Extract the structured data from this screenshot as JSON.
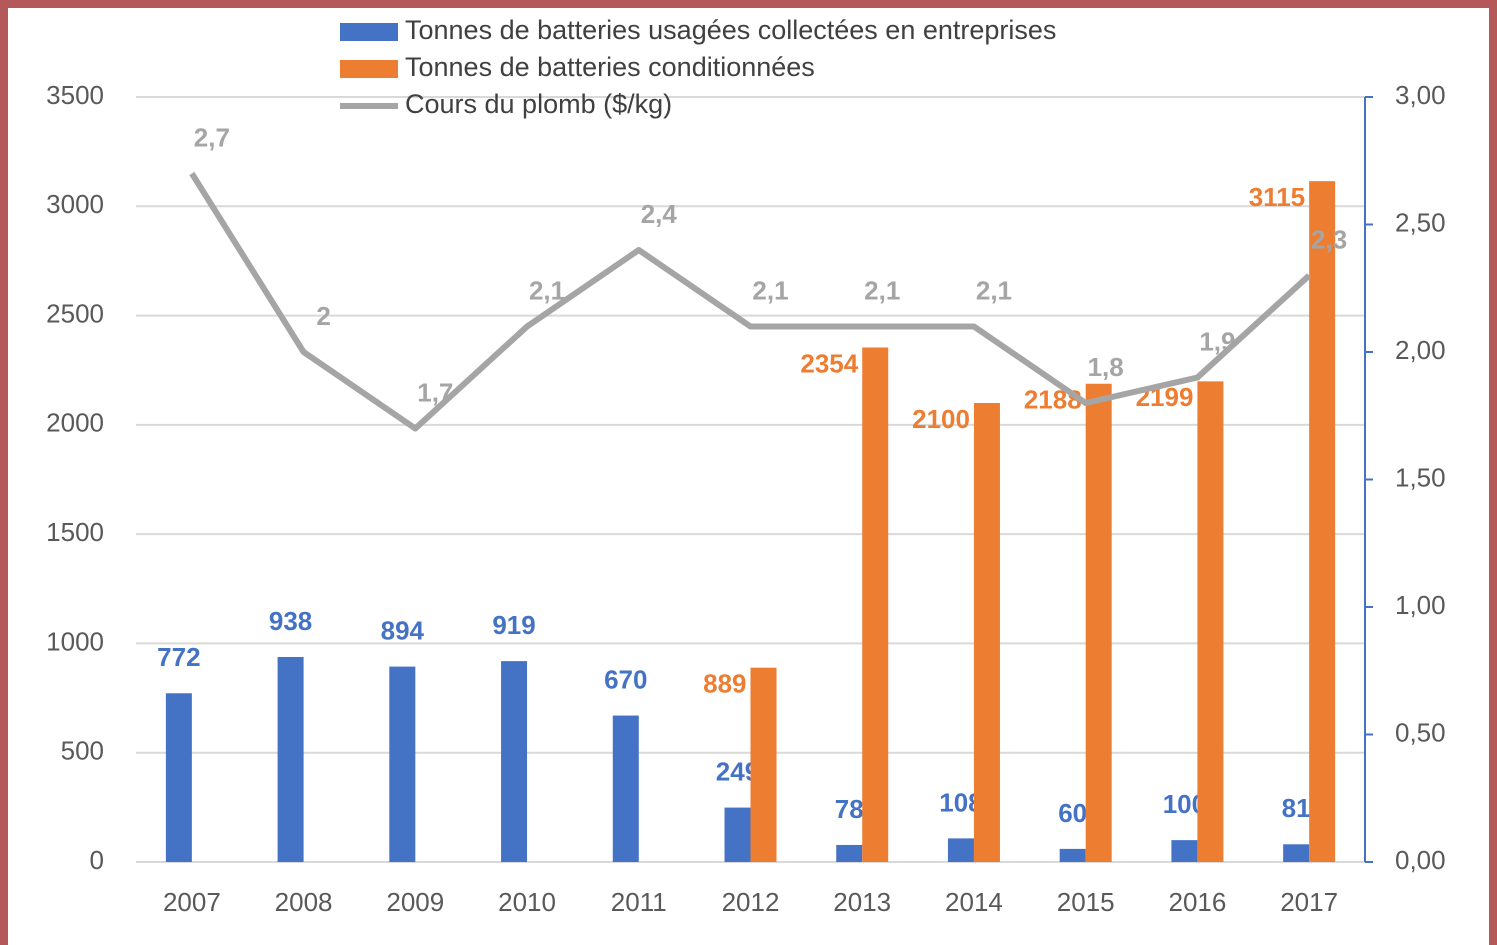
{
  "chart_data": {
    "type": "bar-line",
    "categories": [
      "2007",
      "2008",
      "2009",
      "2010",
      "2011",
      "2012",
      "2013",
      "2014",
      "2015",
      "2016",
      "2017"
    ],
    "series": [
      {
        "name": "Tonnes de batteries usagées collectées en entreprises",
        "type": "bar",
        "color": "#4472c4",
        "values": [
          772,
          938,
          894,
          919,
          670,
          249,
          78,
          108,
          60,
          100,
          81
        ]
      },
      {
        "name": "Tonnes de batteries conditionnées",
        "type": "bar",
        "color": "#ed7d31",
        "values": [
          null,
          null,
          null,
          null,
          null,
          889,
          2354,
          2100,
          2188,
          2199,
          3115
        ]
      },
      {
        "name": "Cours du plomb ($/kg)",
        "type": "line",
        "axis": "y2",
        "color": "#a5a5a5",
        "values": [
          2.7,
          2,
          1.7,
          2.1,
          2.4,
          2.1,
          2.1,
          2.1,
          1.8,
          1.9,
          2.3
        ],
        "value_labels": [
          "2,7",
          "2",
          "1,7",
          "2,1",
          "2,4",
          "2,1",
          "2,1",
          "2,1",
          "1,8",
          "1,9",
          "2,3"
        ]
      }
    ],
    "ylim": [
      0,
      3500
    ],
    "yticks": [
      0,
      500,
      1000,
      1500,
      2000,
      2500,
      3000,
      3500
    ],
    "y2lim": [
      0,
      3
    ],
    "y2ticks": [
      {
        "value": 0,
        "label": "0,00"
      },
      {
        "value": 0.5,
        "label": "0,50"
      },
      {
        "value": 1,
        "label": "1,00"
      },
      {
        "value": 1.5,
        "label": "1,50"
      },
      {
        "value": 2,
        "label": "2,00"
      },
      {
        "value": 2.5,
        "label": "2,50"
      },
      {
        "value": 3,
        "label": "3,00"
      }
    ],
    "y2_axis_color": "#4472c4",
    "grid": true,
    "legend": "top"
  }
}
